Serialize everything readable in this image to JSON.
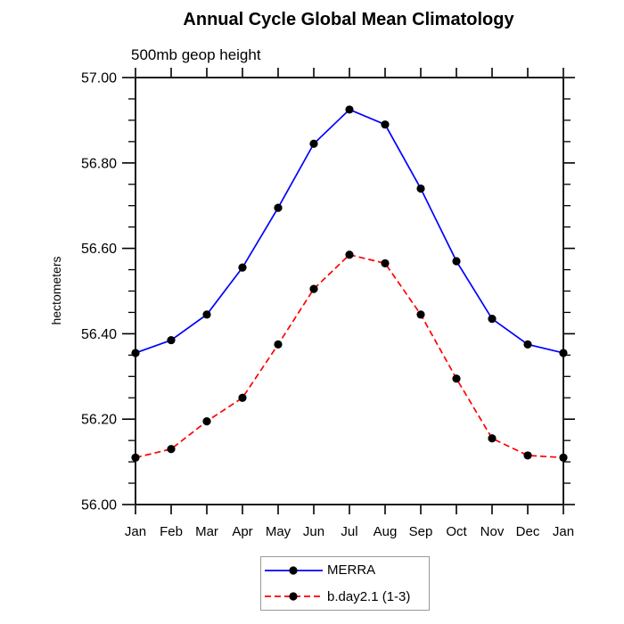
{
  "chart_data": {
    "type": "line",
    "title": "Annual Cycle Global Mean Climatology",
    "subtitle": "500mb geop height",
    "ylabel": "hectometers",
    "xlabel": "",
    "categories": [
      "Jan",
      "Feb",
      "Mar",
      "Apr",
      "May",
      "Jun",
      "Jul",
      "Aug",
      "Sep",
      "Oct",
      "Nov",
      "Dec",
      "Jan"
    ],
    "ylim": [
      56.0,
      57.0
    ],
    "y_major_tick_step": 0.2,
    "y_minor_tick_step": 0.05,
    "y_tick_labels": [
      "56.00",
      "56.20",
      "56.40",
      "56.60",
      "56.80",
      "57.00"
    ],
    "grid": false,
    "legend_position": "bottom-center",
    "axis_color": "#000000",
    "text_color": "#000000",
    "background_color": "#ffffff",
    "series": [
      {
        "name": "MERRA",
        "color": "#0000ff",
        "line_style": "solid",
        "marker": "filled-circle",
        "marker_color": "#000000",
        "values": [
          56.355,
          56.385,
          56.445,
          56.555,
          56.695,
          56.845,
          56.925,
          56.89,
          56.74,
          56.57,
          56.435,
          56.375,
          56.355
        ]
      },
      {
        "name": "b.day2.1 (1-3)",
        "color": "#ff0000",
        "line_style": "dashed",
        "marker": "filled-circle",
        "marker_color": "#000000",
        "values": [
          56.11,
          56.13,
          56.195,
          56.25,
          56.375,
          56.505,
          56.585,
          56.565,
          56.445,
          56.295,
          56.155,
          56.115,
          56.11
        ]
      }
    ]
  }
}
